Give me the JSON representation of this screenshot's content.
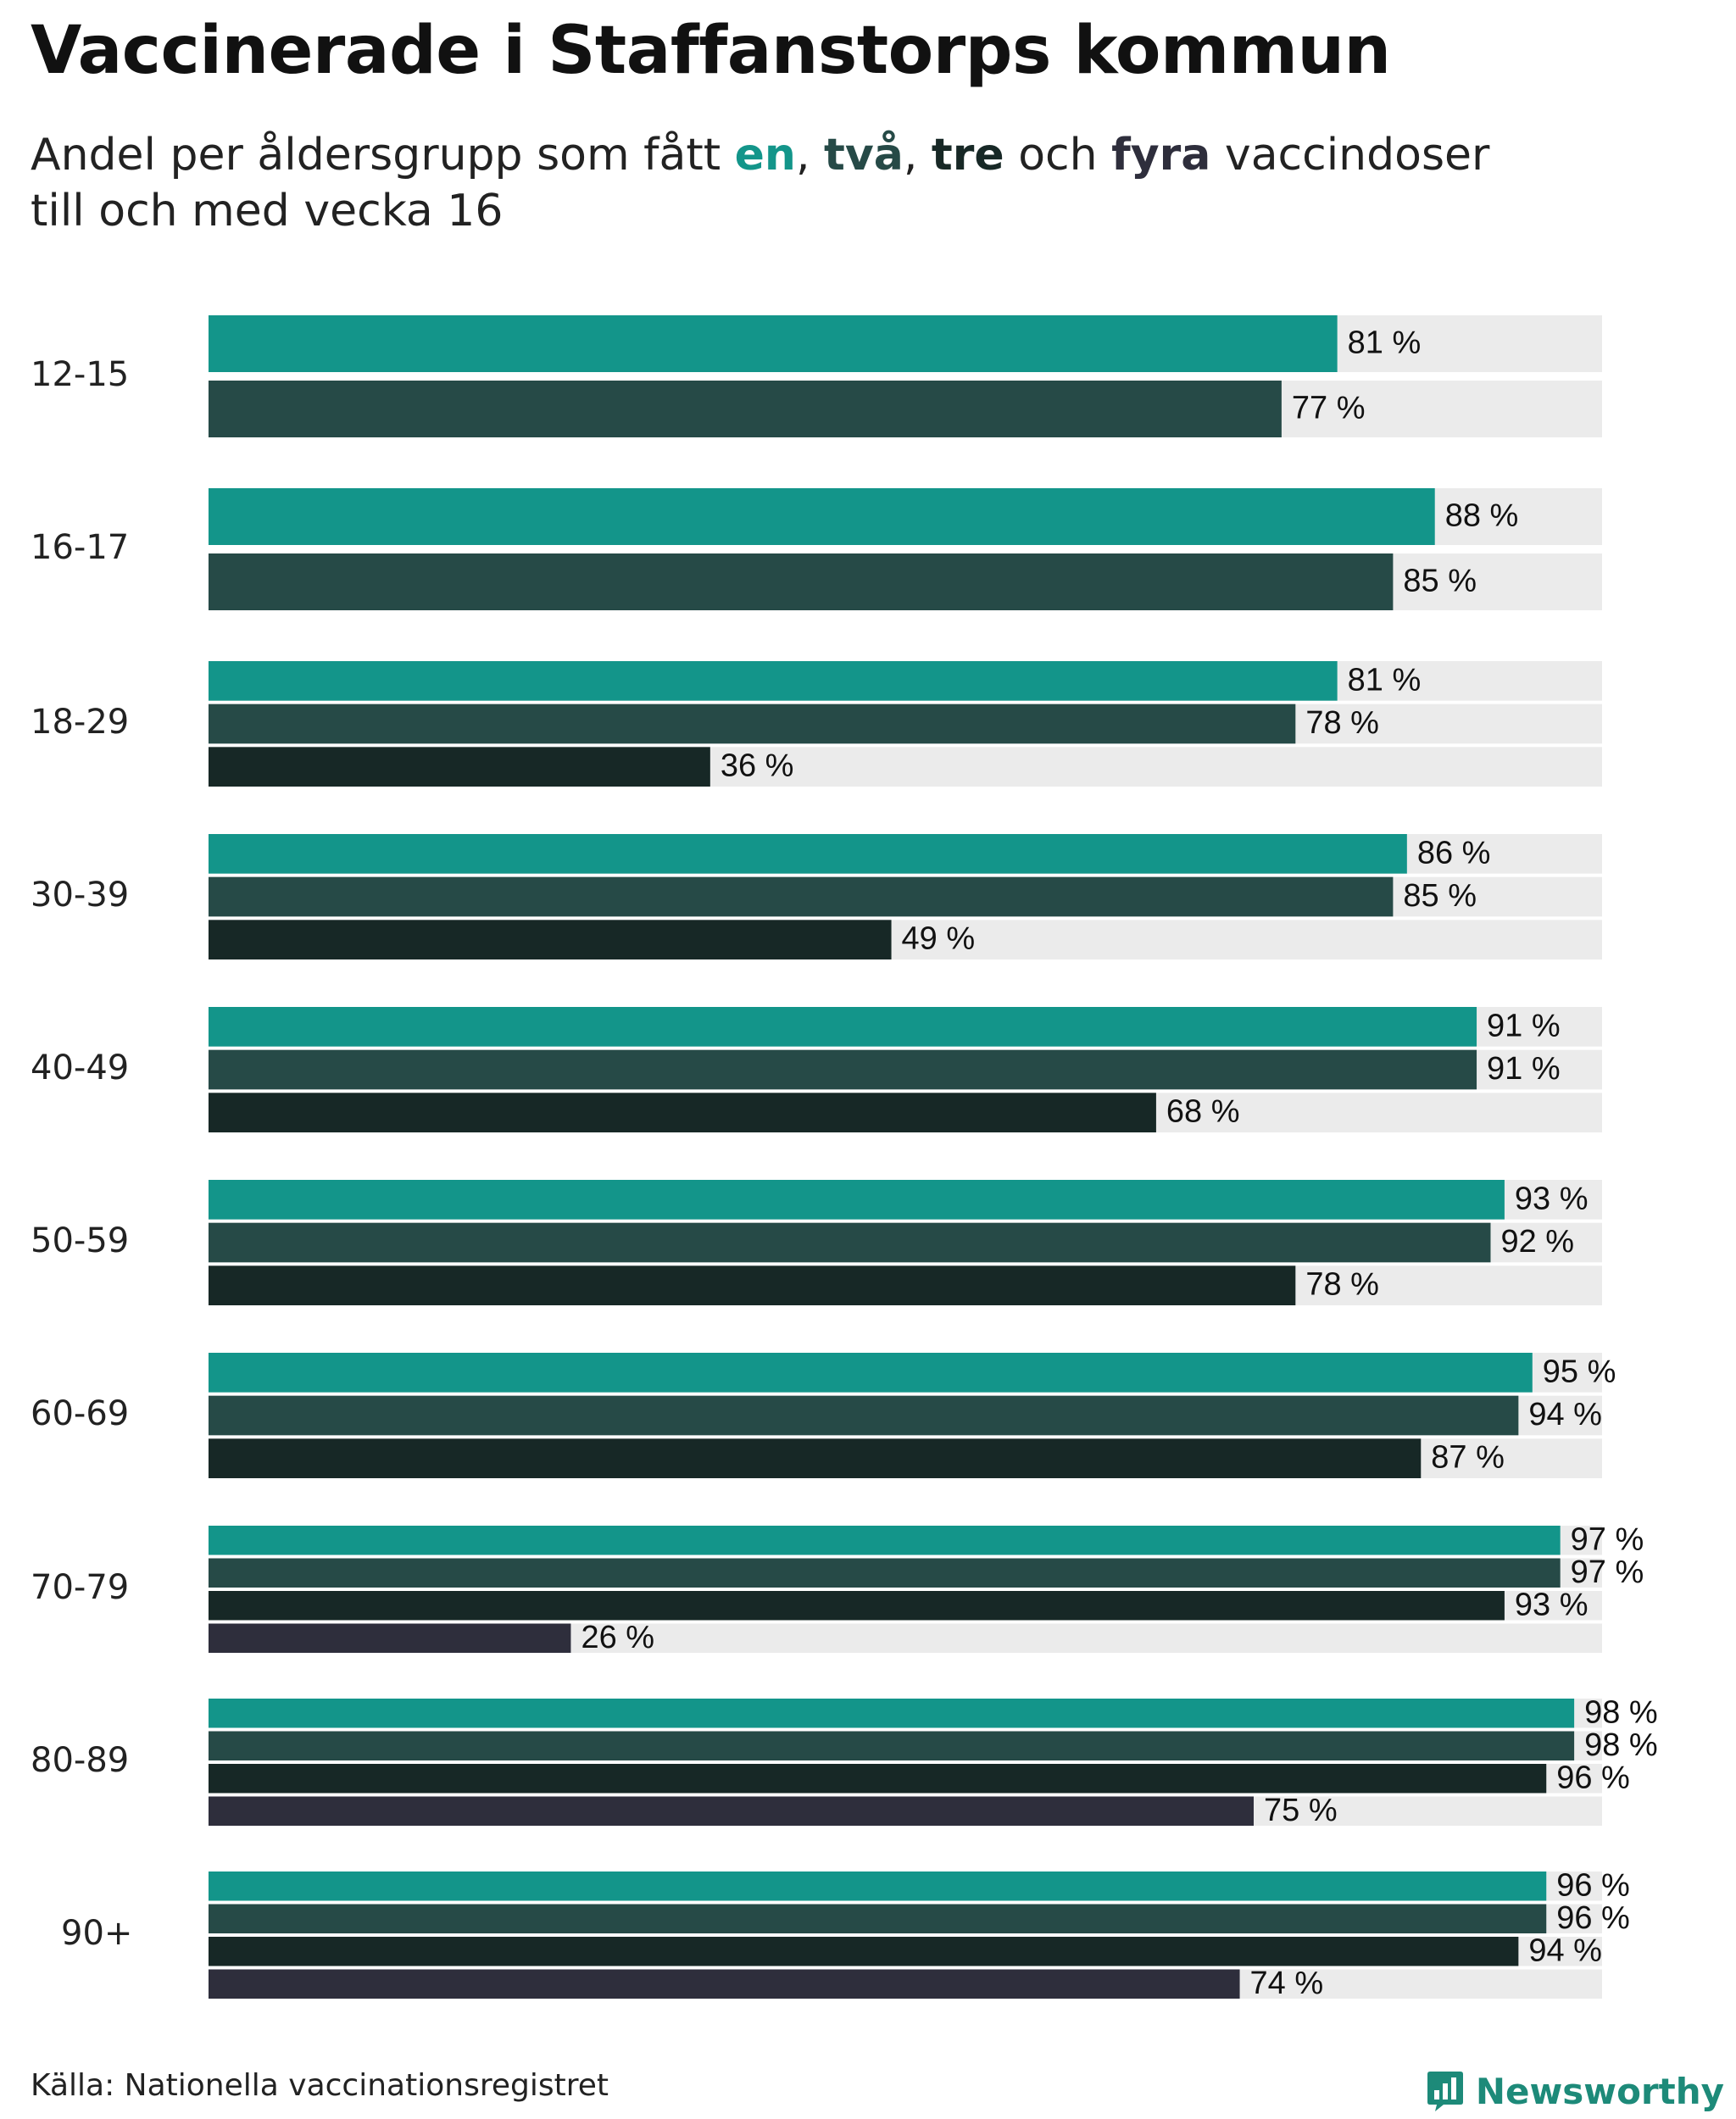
{
  "title": "Vaccinerade i Staffanstorps kommun",
  "subtitle": {
    "prefix": "Andel per åldersgrupp som fått ",
    "d1": "en",
    "sep1": ", ",
    "d2": "två",
    "sep2": ", ",
    "d3": "tre",
    "sep3": " och ",
    "d4": "fyra",
    "suffix": " vaccindoser",
    "line2": "till och med vecka 16"
  },
  "colors": {
    "dose1": "#13958a",
    "dose2": "#264a47",
    "dose3": "#172826",
    "dose4": "#2e2e3c",
    "track": "#ebebeb"
  },
  "chart_data": {
    "type": "bar",
    "orientation": "horizontal",
    "xlim": [
      0,
      100
    ],
    "value_suffix": " %",
    "categories": [
      "12-15",
      "16-17",
      "18-29",
      "30-39",
      "40-49",
      "50-59",
      "60-69",
      "70-79",
      "80-89",
      "90+"
    ],
    "series": [
      {
        "values": [
          81,
          88,
          81,
          86,
          91,
          93,
          95,
          97,
          98,
          96
        ]
      },
      {
        "values": [
          77,
          85,
          78,
          85,
          91,
          92,
          94,
          97,
          98,
          96
        ]
      },
      {
        "values": [
          null,
          null,
          36,
          49,
          68,
          78,
          87,
          93,
          96,
          94
        ]
      },
      {
        "values": [
          null,
          null,
          null,
          null,
          null,
          null,
          null,
          26,
          75,
          74
        ]
      }
    ]
  },
  "source": "Källa: Nationella vaccinationsregistret",
  "brand": {
    "name": "Newsworthy",
    "icon": "bar-chart-logo-icon"
  }
}
